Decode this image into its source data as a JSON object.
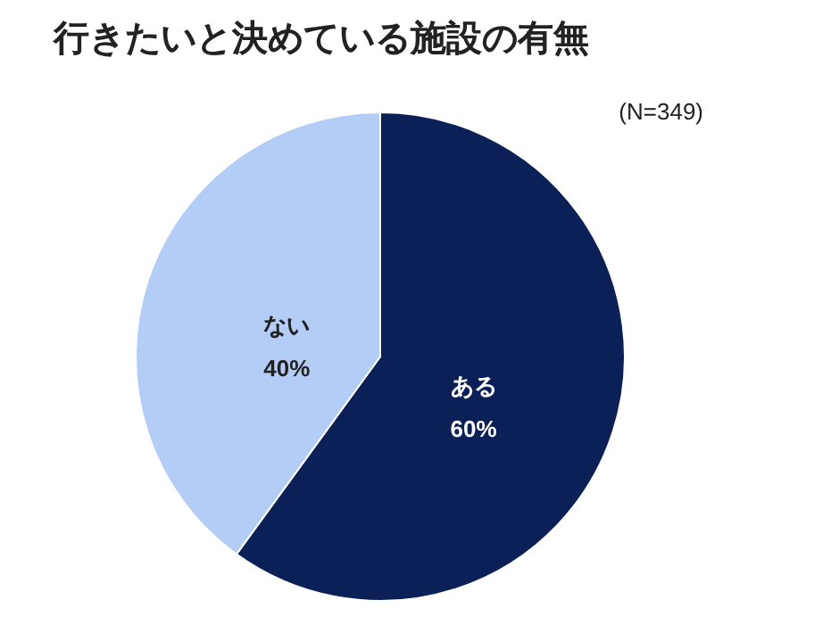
{
  "chart_data": {
    "type": "pie",
    "title": "行きたいと決めている施設の有無",
    "annotations": [
      "(N=349)"
    ],
    "categories": [
      "ある",
      "ない"
    ],
    "values": [
      60,
      40
    ],
    "colors": [
      "#0c2058",
      "#b4cdf6"
    ],
    "value_labels": [
      "60%",
      "40%"
    ],
    "legend": false
  }
}
